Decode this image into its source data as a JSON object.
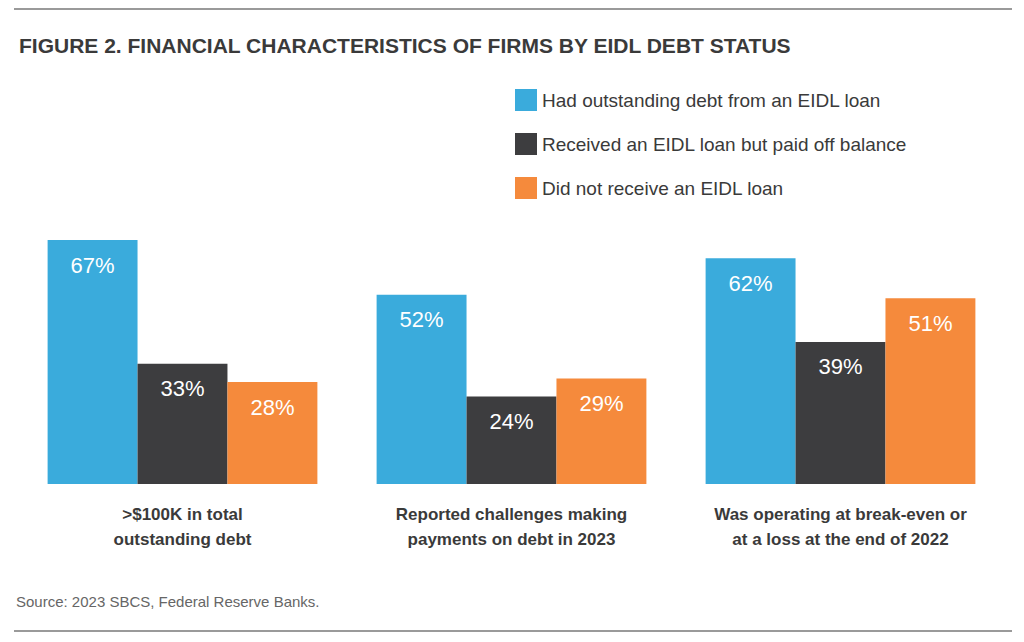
{
  "chart_data": {
    "type": "bar",
    "title": "FIGURE 2. FINANCIAL CHARACTERISTICS OF FIRMS BY EIDL DEBT STATUS",
    "source": "Source: 2023 SBCS, Federal Reserve Banks.",
    "categories": [
      ">$100K in total\noutstanding debt",
      "Reported challenges making\npayments on debt in 2023",
      "Was operating at break-even or\nat a loss at the end of 2022"
    ],
    "series": [
      {
        "name": "Had outstanding debt from an EIDL loan",
        "color": "#3aabdc",
        "values": [
          67,
          52,
          62
        ],
        "value_labels": [
          "67%",
          "52%",
          "62%"
        ]
      },
      {
        "name": "Received an EIDL loan but paid off balance",
        "color": "#3d3d3f",
        "values": [
          33,
          24,
          39
        ],
        "value_labels": [
          "33%",
          "24%",
          "39%"
        ]
      },
      {
        "name": "Did not receive an EIDL loan",
        "color": "#f58a3c",
        "values": [
          28,
          29,
          51
        ],
        "value_labels": [
          "28%",
          "29%",
          "51%"
        ]
      }
    ],
    "ylim": [
      0,
      67
    ],
    "legend": "top-right",
    "data_labels": true,
    "tick_labels": "x",
    "grid": false
  }
}
